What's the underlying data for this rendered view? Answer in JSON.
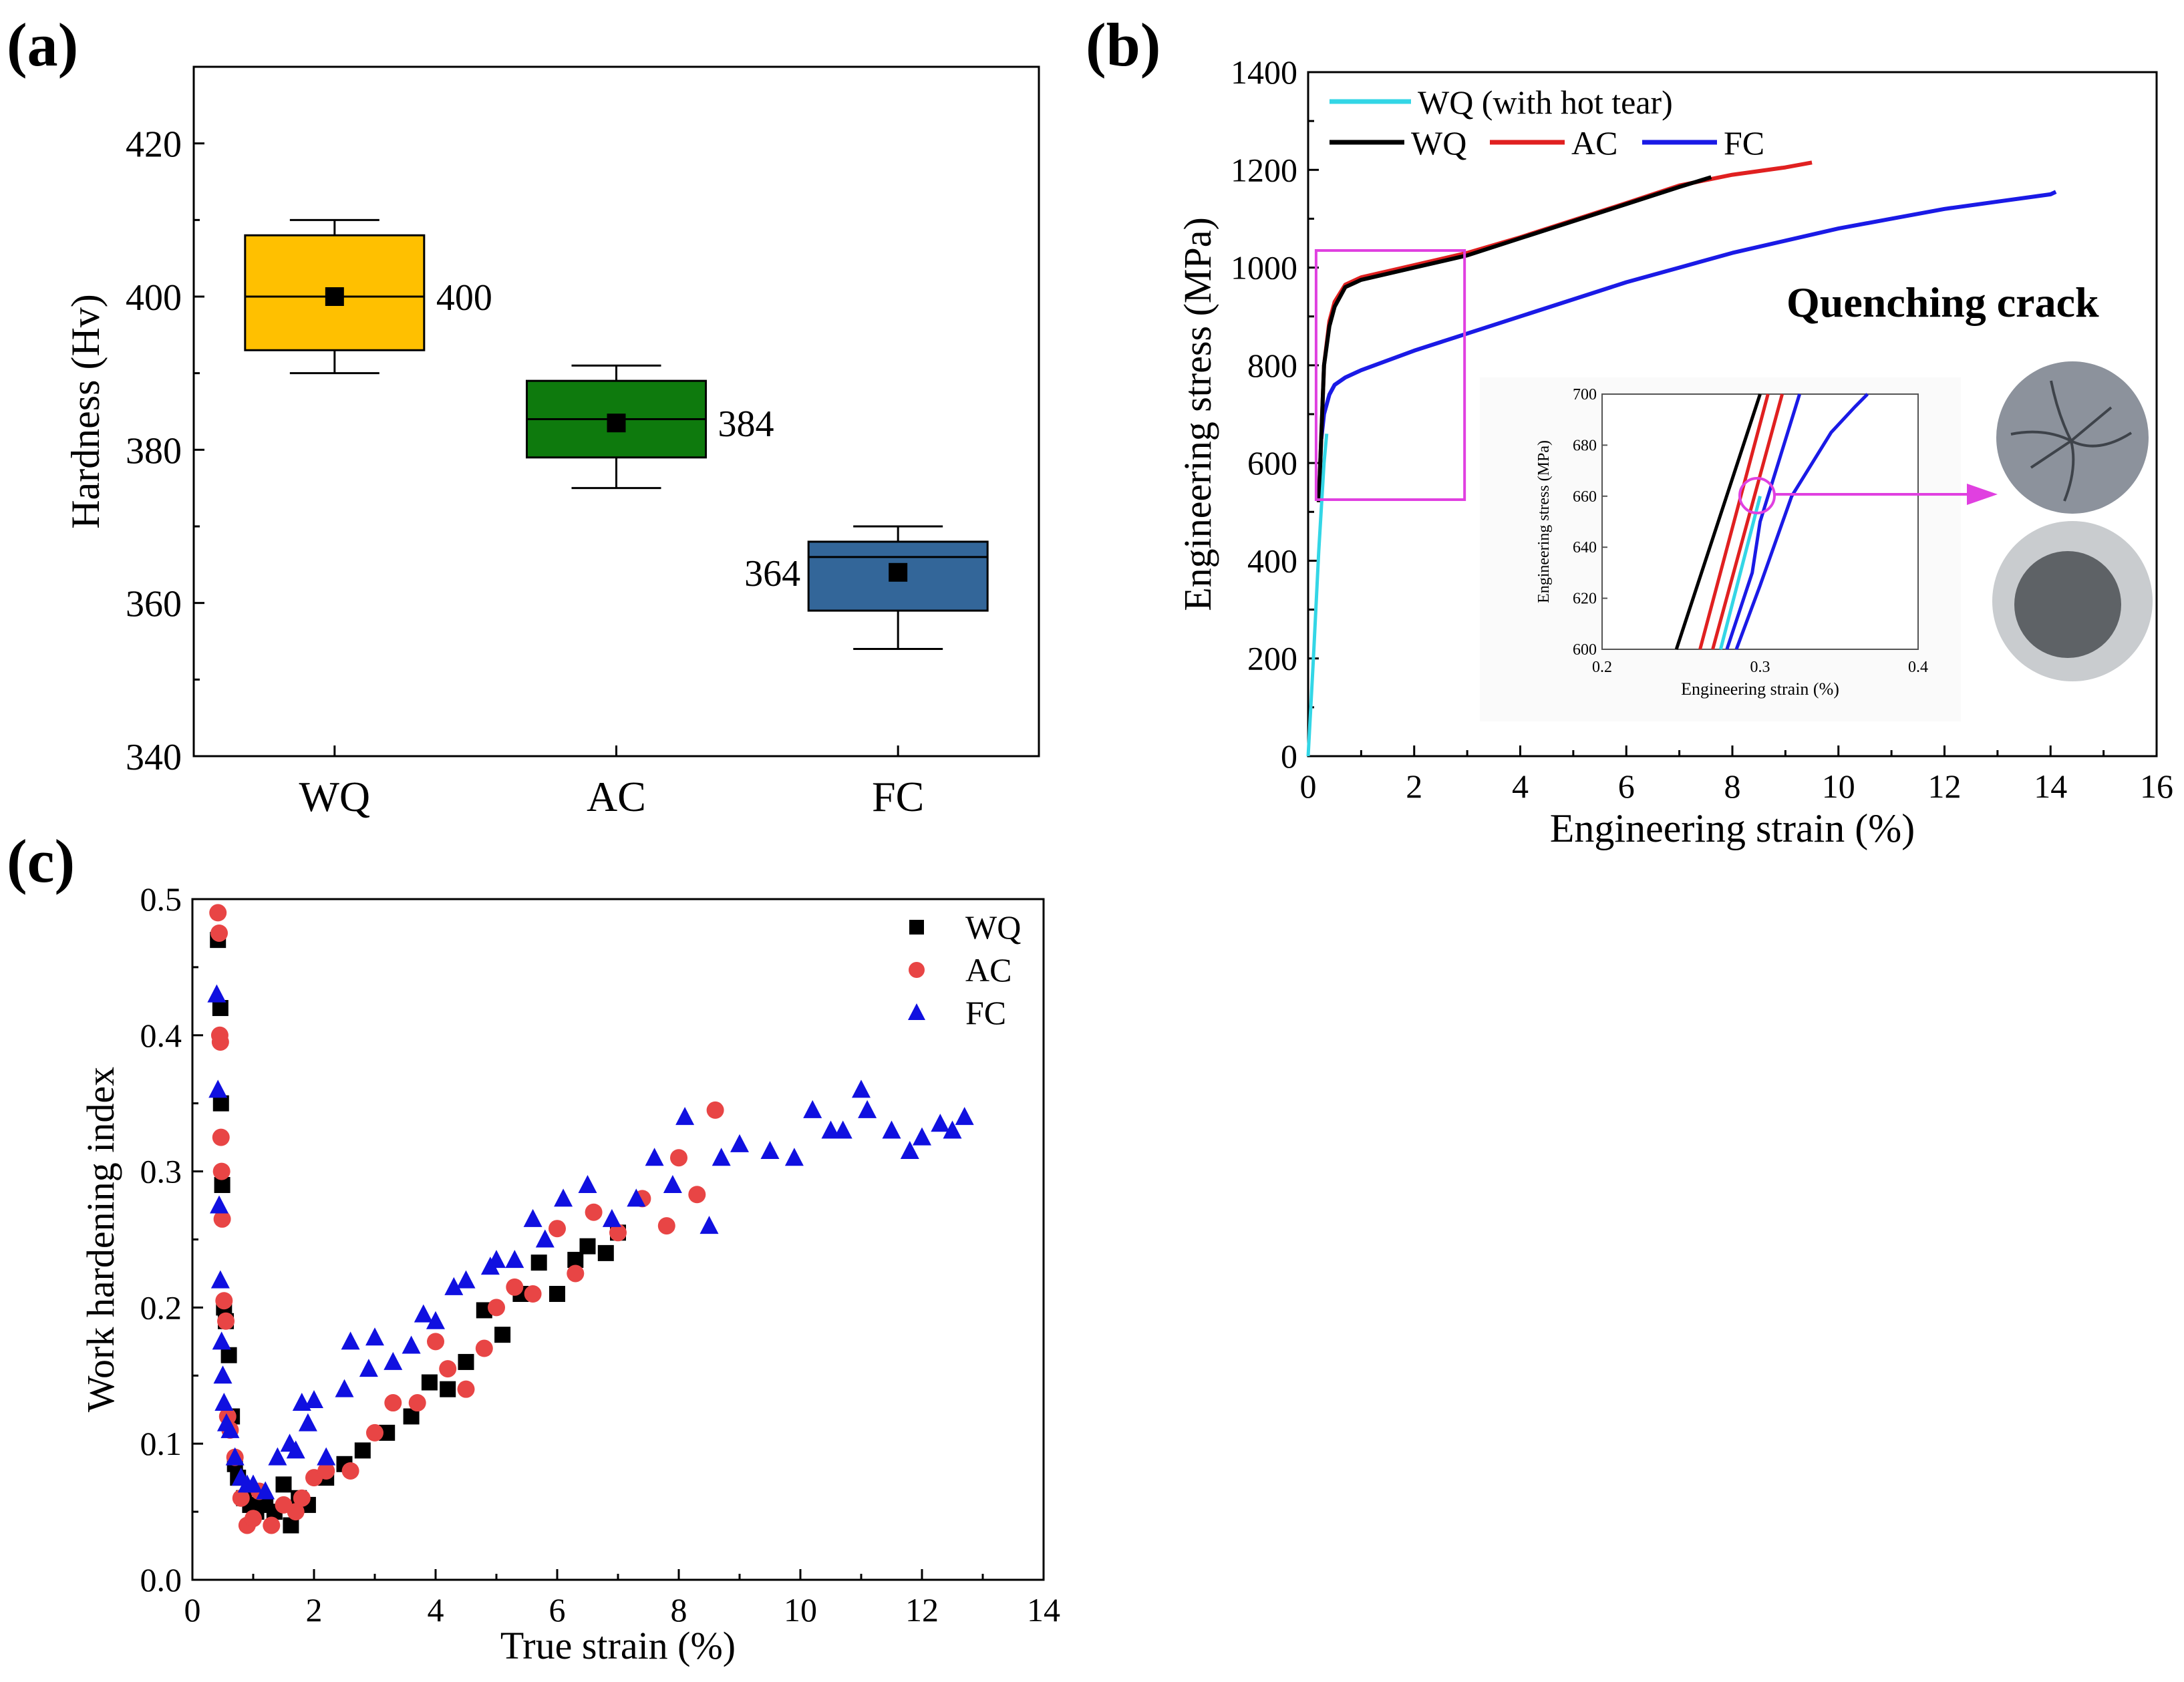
{
  "chart_data": [
    {
      "panel": "(a)",
      "type": "box",
      "ylabel": "Hardness (Hv)",
      "ylim": [
        340,
        430
      ],
      "yticks": [
        340,
        360,
        380,
        400,
        420
      ],
      "categories": [
        "WQ",
        "AC",
        "FC"
      ],
      "boxes": [
        {
          "name": "WQ",
          "whisker_low": 390,
          "q1": 393,
          "median": 400,
          "q3": 408,
          "whisker_high": 410,
          "mean": 400,
          "label": "400",
          "color": "#FFC000"
        },
        {
          "name": "AC",
          "whisker_low": 375,
          "q1": 379,
          "median": 384,
          "q3": 389,
          "whisker_high": 391,
          "mean": 383.5,
          "label": "384",
          "color": "#0E7A0D"
        },
        {
          "name": "FC",
          "whisker_low": 354,
          "q1": 359,
          "median": 366,
          "q3": 368,
          "whisker_high": 370,
          "mean": 364,
          "label": "364",
          "color": "#336699"
        }
      ]
    },
    {
      "panel": "(b)",
      "type": "line",
      "xlabel": "Engineering strain (%)",
      "ylabel": "Engineering stress (MPa)",
      "xlim": [
        0,
        16
      ],
      "ylim": [
        0,
        1400
      ],
      "xticks": [
        0,
        2,
        4,
        6,
        8,
        10,
        12,
        14,
        16
      ],
      "yticks": [
        0,
        200,
        400,
        600,
        800,
        1000,
        1200,
        1400
      ],
      "annotation": "Quenching crack",
      "series": [
        {
          "name": "WQ (with hot tear)",
          "color": "#33D6E6",
          "x": [
            0,
            0.1,
            0.2,
            0.3,
            0.35
          ],
          "y": [
            0,
            200,
            420,
            600,
            660
          ]
        },
        {
          "name": "WQ",
          "color": "#000000",
          "x": [
            0.2,
            0.3,
            0.4,
            0.5,
            0.7,
            1.0,
            2.0,
            3.0,
            4.0,
            5.0,
            6.0,
            7.0,
            7.6
          ],
          "y": [
            520,
            800,
            880,
            920,
            960,
            975,
            1000,
            1025,
            1060,
            1095,
            1130,
            1165,
            1185
          ]
        },
        {
          "name": "AC",
          "color": "#E02020",
          "x": [
            0.2,
            0.3,
            0.4,
            0.5,
            0.7,
            1.0,
            2.0,
            3.0,
            4.0,
            5.0,
            6.0,
            7.0,
            8.0,
            9.0,
            9.5
          ],
          "y": [
            520,
            800,
            890,
            930,
            965,
            980,
            1005,
            1030,
            1062,
            1097,
            1132,
            1168,
            1190,
            1205,
            1215
          ]
        },
        {
          "name": "FC",
          "color": "#1A1AE6",
          "x": [
            0.25,
            0.3,
            0.4,
            0.5,
            0.7,
            1.0,
            2.0,
            3.0,
            4.0,
            5.0,
            6.0,
            7.0,
            8.0,
            9.0,
            10.0,
            11.0,
            12.0,
            13.0,
            14.0,
            14.1
          ],
          "y": [
            650,
            700,
            740,
            760,
            775,
            790,
            830,
            865,
            900,
            935,
            970,
            1000,
            1030,
            1055,
            1080,
            1100,
            1120,
            1135,
            1150,
            1155
          ]
        }
      ],
      "highlight_box": {
        "x": [
          0.15,
          2.95
        ],
        "y": [
          525,
          1035
        ],
        "color": "#E040E0"
      },
      "inset": {
        "xlabel": "Engineering strain (%)",
        "ylabel": "Engineering stress (MPa)",
        "xlim": [
          0.2,
          0.4
        ],
        "ylim": [
          600,
          700
        ],
        "xticks": [
          "0.2",
          "0.3",
          "0.4"
        ],
        "yticks": [
          "600",
          "620",
          "640",
          "660",
          "680",
          "700"
        ],
        "series": [
          {
            "color": "#000000",
            "x": [
              0.247,
              0.3
            ],
            "y": [
              600,
              700
            ]
          },
          {
            "color": "#E02020",
            "x": [
              0.262,
              0.305
            ],
            "y": [
              600,
              700
            ]
          },
          {
            "color": "#E02020",
            "x": [
              0.27,
              0.314
            ],
            "y": [
              600,
              700
            ]
          },
          {
            "color": "#33D6E6",
            "x": [
              0.275,
              0.3
            ],
            "y": [
              600,
              660
            ]
          },
          {
            "color": "#1A1AE6",
            "x": [
              0.279,
              0.295,
              0.3,
              0.325
            ],
            "y": [
              600,
              630,
              650,
              700
            ]
          },
          {
            "color": "#1A1AE6",
            "x": [
              0.285,
              0.3,
              0.32,
              0.345,
              0.36,
              0.368
            ],
            "y": [
              600,
              625,
              660,
              685,
              695,
              700
            ]
          }
        ]
      }
    },
    {
      "panel": "(c)",
      "type": "scatter",
      "xlabel": "True strain (%)",
      "ylabel": "Work hardening index",
      "xlim": [
        0,
        14
      ],
      "ylim": [
        0,
        0.5
      ],
      "xticks": [
        0,
        2,
        4,
        6,
        8,
        10,
        12,
        14
      ],
      "yticks": [
        "0.0",
        "0.1",
        "0.2",
        "0.3",
        "0.4",
        "0.5"
      ],
      "series": [
        {
          "name": "WQ",
          "marker": "square",
          "color": "#000000",
          "x": [
            0.42,
            0.46,
            0.47,
            0.49,
            0.52,
            0.55,
            0.6,
            0.65,
            0.7,
            0.75,
            0.85,
            0.95,
            1.05,
            1.2,
            1.35,
            1.5,
            1.62,
            1.75,
            1.9,
            2.2,
            2.5,
            2.8,
            3.2,
            3.6,
            3.9,
            4.2,
            4.5,
            4.8,
            5.1,
            5.4,
            5.7,
            6.0,
            6.3,
            6.5,
            6.8,
            7.0
          ],
          "y": [
            0.47,
            0.42,
            0.35,
            0.29,
            0.2,
            0.19,
            0.165,
            0.12,
            0.085,
            0.075,
            0.06,
            0.055,
            0.05,
            0.055,
            0.05,
            0.07,
            0.04,
            0.06,
            0.055,
            0.075,
            0.085,
            0.095,
            0.108,
            0.12,
            0.145,
            0.14,
            0.16,
            0.198,
            0.18,
            0.21,
            0.233,
            0.21,
            0.235,
            0.245,
            0.24,
            0.255
          ]
        },
        {
          "name": "AC",
          "marker": "circle",
          "color": "#E84545",
          "x": [
            0.42,
            0.44,
            0.45,
            0.46,
            0.47,
            0.48,
            0.49,
            0.52,
            0.55,
            0.58,
            0.62,
            0.7,
            0.8,
            0.9,
            1.0,
            1.1,
            1.3,
            1.5,
            1.7,
            1.8,
            2.0,
            2.2,
            2.6,
            3.0,
            3.3,
            3.7,
            4.0,
            4.2,
            4.5,
            4.8,
            5.0,
            5.3,
            5.6,
            6.0,
            6.3,
            6.6,
            7.0,
            7.4,
            7.8,
            8.0,
            8.3,
            8.6
          ],
          "y": [
            0.49,
            0.475,
            0.4,
            0.395,
            0.325,
            0.3,
            0.265,
            0.205,
            0.19,
            0.12,
            0.11,
            0.09,
            0.06,
            0.04,
            0.045,
            0.065,
            0.04,
            0.055,
            0.05,
            0.06,
            0.075,
            0.08,
            0.08,
            0.108,
            0.13,
            0.13,
            0.175,
            0.155,
            0.14,
            0.17,
            0.2,
            0.215,
            0.21,
            0.258,
            0.225,
            0.27,
            0.255,
            0.28,
            0.26,
            0.31,
            0.283,
            0.345
          ]
        },
        {
          "name": "FC",
          "marker": "triangle",
          "color": "#1010E0",
          "x": [
            0.4,
            0.42,
            0.44,
            0.46,
            0.48,
            0.5,
            0.52,
            0.56,
            0.62,
            0.7,
            0.8,
            0.9,
            1.0,
            1.2,
            1.4,
            1.6,
            1.7,
            1.8,
            1.9,
            2.0,
            2.2,
            2.5,
            2.6,
            2.9,
            3.0,
            3.3,
            3.6,
            3.8,
            4.0,
            4.3,
            4.5,
            4.9,
            5.0,
            5.3,
            5.6,
            5.8,
            6.1,
            6.5,
            6.9,
            7.3,
            7.6,
            7.9,
            8.1,
            8.5,
            8.7,
            9.0,
            9.5,
            9.9,
            10.2,
            10.5,
            10.7,
            11.0,
            11.1,
            11.5,
            11.8,
            12.0,
            12.3,
            12.5,
            12.7
          ],
          "y": [
            0.43,
            0.36,
            0.275,
            0.22,
            0.175,
            0.15,
            0.13,
            0.115,
            0.11,
            0.09,
            0.075,
            0.07,
            0.07,
            0.065,
            0.09,
            0.1,
            0.095,
            0.13,
            0.115,
            0.132,
            0.09,
            0.14,
            0.175,
            0.155,
            0.178,
            0.16,
            0.172,
            0.195,
            0.19,
            0.215,
            0.22,
            0.23,
            0.235,
            0.235,
            0.265,
            0.25,
            0.28,
            0.29,
            0.265,
            0.28,
            0.31,
            0.29,
            0.34,
            0.26,
            0.31,
            0.32,
            0.315,
            0.31,
            0.345,
            0.33,
            0.33,
            0.36,
            0.345,
            0.33,
            0.315,
            0.325,
            0.335,
            0.33,
            0.34
          ]
        }
      ]
    }
  ],
  "inset_photos": {
    "top": {
      "name": "quenching-crack-disc-photo",
      "color": "#8C929C"
    },
    "bottom": {
      "name": "hot-tear-specimen-photo",
      "color": "#5E6266"
    }
  }
}
